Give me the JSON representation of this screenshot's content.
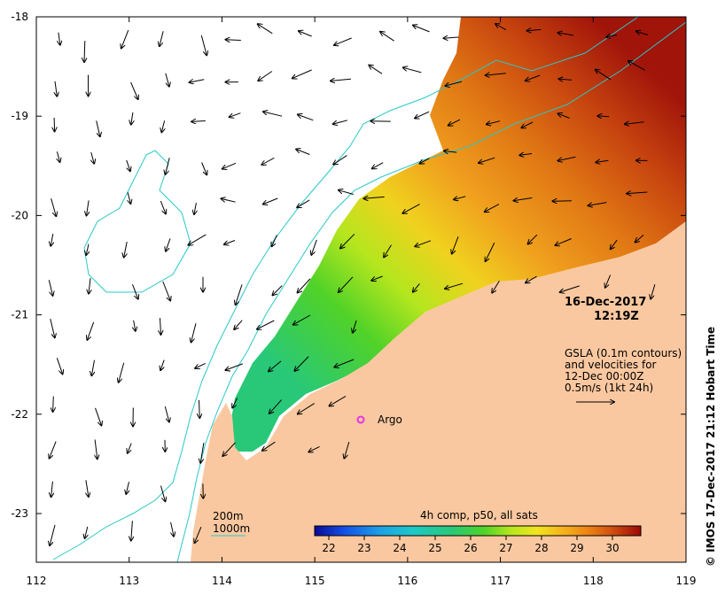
{
  "map": {
    "date": "16-Dec-2017",
    "time": "12:19Z",
    "argo_label": "Argo",
    "gsla_lines": [
      "GSLA (0.1m contours)",
      "and velocities for",
      "12-Dec 00:00Z",
      "0.5m/s (1kt 24h)"
    ],
    "credit": "© IMOS 17-Dec-2017 21:12 Hobart Time",
    "legend": {
      "depth_200": "200m",
      "depth_1000": "1000m"
    },
    "colorbar": {
      "title": "4h comp, p50, all sats",
      "ticks": [
        "22",
        "23",
        "24",
        "25",
        "26",
        "27",
        "28",
        "29",
        "30"
      ],
      "range": [
        21.6,
        30.8
      ],
      "colors": [
        "#0a0a96",
        "#1450e6",
        "#1ea0e6",
        "#1ec8c8",
        "#28c878",
        "#50d228",
        "#b4e61e",
        "#f0e61e",
        "#f5b41e",
        "#eb8214",
        "#d2500f",
        "#b4280a",
        "#9b0a0a"
      ]
    },
    "x_axis": {
      "ticks": [
        "112",
        "113",
        "114",
        "115",
        "116",
        "117",
        "118",
        "119"
      ]
    },
    "y_axis": {
      "ticks": [
        "-18",
        "-19",
        "-20",
        "-21",
        "-22",
        "-23"
      ]
    },
    "colors": {
      "land": "#fac8a0",
      "contour": "#28c8c8",
      "argo": "#e632e6"
    }
  }
}
